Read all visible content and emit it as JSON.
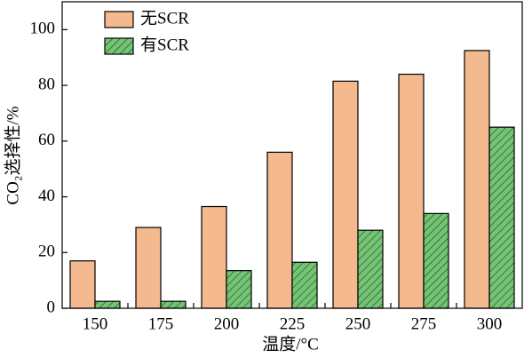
{
  "chart_data": {
    "type": "bar",
    "x_label": "温度/°C",
    "y_label": "CO₂选择性/%",
    "categories": [
      "150",
      "175",
      "200",
      "225",
      "250",
      "275",
      "300"
    ],
    "series": [
      {
        "name": "无SCR",
        "color": "#f4b98f",
        "values": [
          17,
          29,
          36.5,
          56,
          81.5,
          84,
          92.5
        ]
      },
      {
        "name": "有SCR",
        "color": "#74c476",
        "hatch": true,
        "values": [
          2.5,
          2.5,
          13.5,
          16.5,
          28,
          34,
          65
        ]
      }
    ],
    "ylim": [
      0,
      110
    ],
    "yticks": [
      0,
      20,
      40,
      60,
      80,
      100
    ],
    "grid": false,
    "legend": "upper left"
  }
}
